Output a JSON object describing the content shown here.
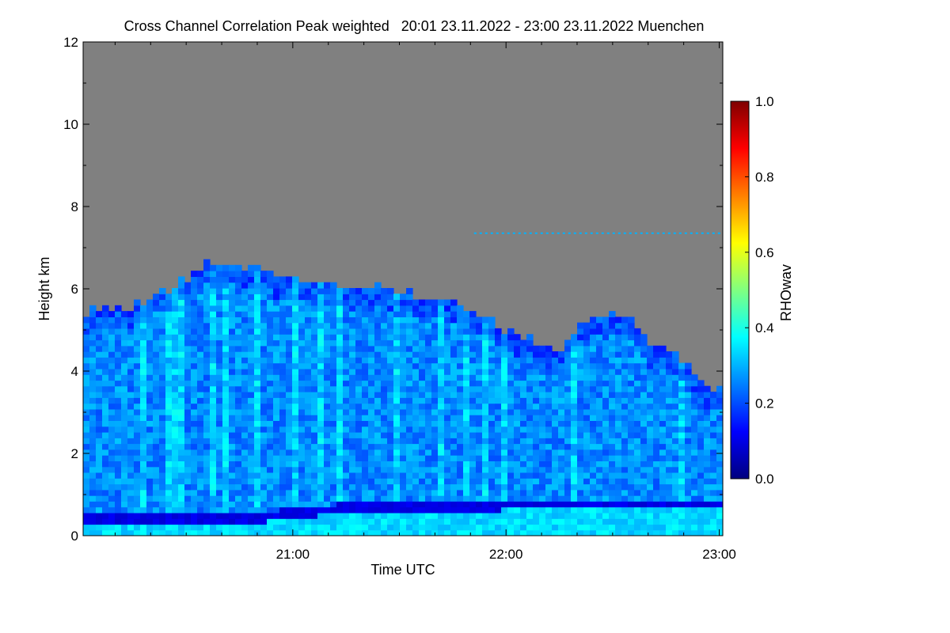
{
  "chart_data": {
    "type": "heatmap",
    "title": "Cross Channel Correlation Peak weighted   20:01 23.11.2022 - 23:00 23.11.2022 Muenchen",
    "xlabel": "Time UTC",
    "ylabel": "Height km",
    "xlim": [
      "20:01",
      "23:01"
    ],
    "ylim": [
      0,
      12
    ],
    "x_ticks": [
      "21:00",
      "22:00",
      "23:00"
    ],
    "y_ticks": [
      0,
      2,
      4,
      6,
      8,
      10,
      12
    ],
    "colorbar": {
      "label": "RHOwav",
      "range": [
        0.0,
        1.0
      ],
      "ticks": [
        "0.0",
        "0.2",
        "0.4",
        "0.6",
        "0.8",
        "1.0"
      ],
      "colors": [
        "#00007f",
        "#0000ff",
        "#0080ff",
        "#00ffff",
        "#80ff80",
        "#ffff00",
        "#ff8000",
        "#ff0000",
        "#7f0000"
      ]
    },
    "no_data_color": "#808080",
    "cloud_top_km": [
      5.4,
      5.5,
      5.4,
      5.6,
      5.8,
      6.0,
      6.3,
      6.6,
      6.6,
      6.4,
      6.4,
      6.3,
      6.2,
      6.1,
      6.0,
      6.0,
      6.0,
      5.9,
      5.8,
      5.7,
      5.6,
      5.4,
      5.2,
      5.0,
      4.8,
      4.6,
      4.5,
      5.0,
      5.3,
      5.3,
      5.2,
      4.6,
      4.5,
      4.2,
      3.6,
      3.5
    ],
    "surface_layer_km": [
      0.35,
      0.35,
      0.35,
      0.33,
      0.33,
      0.33,
      0.33,
      0.35,
      0.35,
      0.38,
      0.4,
      0.45,
      0.5,
      0.55,
      0.58,
      0.6,
      0.62,
      0.63,
      0.64,
      0.65,
      0.65,
      0.66,
      0.67,
      0.68,
      0.68,
      0.7,
      0.7,
      0.7,
      0.7,
      0.7,
      0.72,
      0.72,
      0.72,
      0.72,
      0.72,
      0.72
    ],
    "mean_rho": 0.25,
    "thin_layer_km": 7.35
  }
}
